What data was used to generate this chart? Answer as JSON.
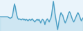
{
  "y": [
    0.0,
    0.0,
    0.0,
    0.0,
    0.0,
    0.0,
    0.0,
    0.0,
    0.0,
    0.0,
    -0.1,
    -0.2,
    -0.3,
    -0.2,
    -0.1,
    0.5,
    1.5,
    2.5,
    2.0,
    1.0,
    0.2,
    -0.3,
    -0.5,
    -0.4,
    -0.5,
    -0.6,
    -0.5,
    -0.4,
    -0.6,
    -0.5,
    -0.7,
    -0.5,
    -0.6,
    -0.8,
    -0.6,
    -0.5,
    -0.7,
    -0.6,
    -0.4,
    -0.6,
    -0.8,
    -1.0,
    -0.8,
    -0.6,
    -0.5,
    -0.7,
    -0.5,
    -0.8,
    -1.2,
    -0.8,
    -0.5,
    -0.6,
    -0.9,
    -1.5,
    -0.9,
    -0.6,
    -0.4,
    -0.7,
    -1.0,
    -0.6,
    -0.3,
    0.5,
    1.8,
    3.0,
    1.8,
    0.5,
    -0.5,
    -1.5,
    -2.5,
    -1.5,
    -0.5,
    0.3,
    0.8,
    0.5,
    0.3,
    -0.3,
    -0.8,
    -1.2,
    -0.8,
    -0.4,
    0.2,
    0.7,
    1.0,
    0.7,
    0.2,
    -0.3,
    -0.7,
    -1.0,
    -0.7,
    -0.3,
    0.1,
    0.5,
    0.8,
    0.5,
    0.1,
    -0.4,
    -0.8,
    -0.5,
    -0.2
  ],
  "line_color": "#4a9ec4",
  "fill_color": "#7bbfdb",
  "background_color": "#eaf4fb",
  "linewidth": 1.0
}
